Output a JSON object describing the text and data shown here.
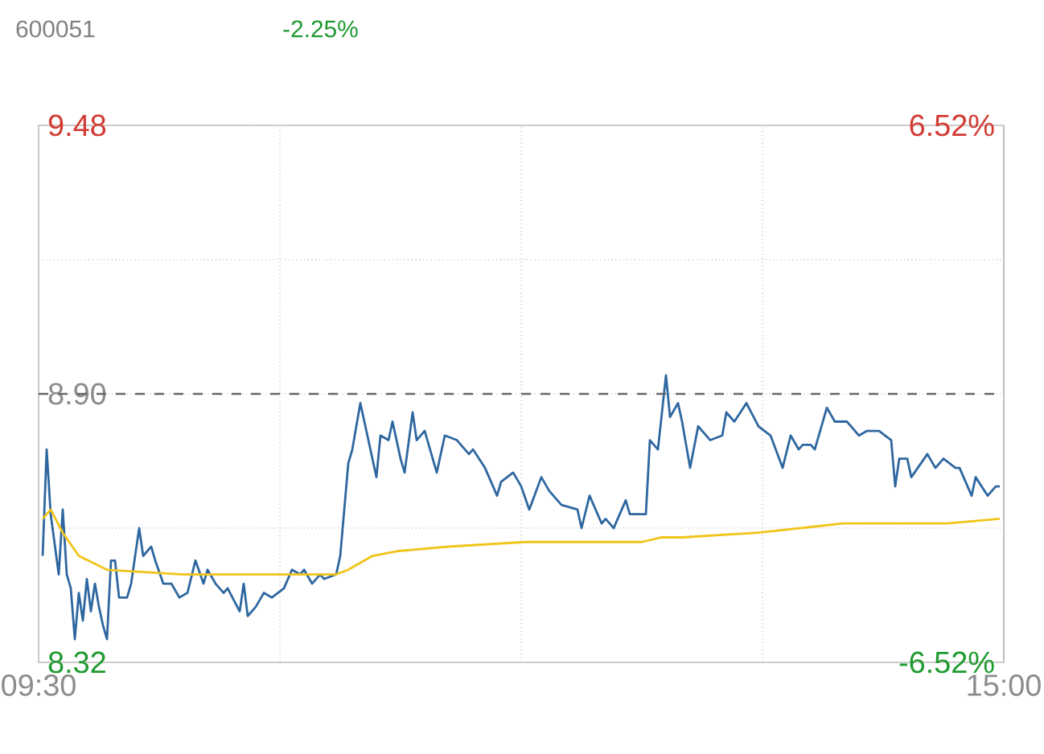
{
  "chart_data": {
    "type": "line",
    "title": "600051",
    "subtitle": "-2.25%",
    "categories": [
      "09:30",
      null,
      null,
      null,
      null,
      null,
      null,
      null,
      null,
      null,
      null,
      null,
      null,
      null,
      null,
      null,
      null,
      null,
      null,
      null,
      null,
      null,
      null,
      null,
      null,
      null,
      null,
      null,
      null,
      null,
      null,
      null,
      null,
      null,
      null,
      null,
      null,
      null,
      null,
      null,
      null,
      null,
      null,
      null,
      null,
      null,
      null,
      null,
      null,
      null,
      null,
      null,
      null,
      null,
      null,
      null,
      null,
      null,
      null,
      null,
      null,
      null,
      null,
      null,
      null,
      null,
      null,
      null,
      null,
      null,
      null,
      null,
      null,
      null,
      null,
      null,
      null,
      null,
      null,
      null,
      null,
      null,
      null,
      null,
      null,
      null,
      null,
      null,
      null,
      null,
      null,
      null,
      null,
      null,
      null,
      null,
      null,
      null,
      null,
      null,
      null,
      null,
      null,
      null,
      null,
      null,
      null,
      null,
      null,
      null,
      null,
      null,
      null,
      null,
      null,
      null,
      null,
      null,
      null,
      null,
      null,
      null,
      null,
      null,
      null,
      null,
      null,
      null,
      null,
      null,
      null,
      null,
      null,
      null,
      null,
      null,
      null,
      null,
      null,
      null,
      null,
      null,
      null,
      null,
      null,
      null,
      null,
      null,
      null,
      null,
      null,
      null,
      null,
      null,
      null,
      null,
      null,
      null,
      null,
      null,
      null,
      null,
      null,
      null,
      null,
      null,
      null,
      null,
      null,
      null,
      null,
      null,
      null,
      null,
      null,
      null,
      null,
      null,
      null,
      null,
      null,
      null,
      null,
      null,
      null,
      null,
      null,
      null,
      null,
      null,
      null,
      null,
      null,
      null,
      null,
      null,
      null,
      null,
      null,
      null,
      null,
      null,
      null,
      null,
      null,
      null,
      null,
      null,
      null,
      null,
      null,
      null,
      null,
      null,
      null,
      null,
      null,
      null,
      null,
      null,
      null,
      null,
      null,
      null,
      null,
      null,
      null,
      null,
      null,
      null,
      null,
      null,
      null,
      null,
      null,
      null,
      null,
      null,
      null,
      null,
      "15:00"
    ],
    "ylim": [
      8.32,
      9.48
    ],
    "yticks": [
      8.32,
      {
        "value": 8.61,
        "label": null
      },
      {
        "value": 8.9,
        "label": "8.90"
      },
      {
        "value": 9.19,
        "label": null
      },
      9.48
    ],
    "y2lim": [
      -6.52,
      6.52
    ],
    "y2ticks": [
      {
        "value": -6.52,
        "label": "-6.52%"
      },
      {
        "value": 6.52,
        "label": "6.52%"
      }
    ],
    "grid": true,
    "ref_lines": [
      {
        "axis": "y",
        "value": 8.9,
        "color": "#666666",
        "line_style": "dashed"
      }
    ],
    "series": [
      {
        "color": "#2e67a0",
        "values": [
          null,
          8.55,
          8.78,
          8.64,
          null,
          8.51,
          8.65,
          8.51,
          8.48,
          8.37,
          8.47,
          8.41,
          8.5,
          8.43,
          8.49,
          8.44,
          8.4,
          8.37,
          8.54,
          8.54,
          8.46,
          null,
          8.46,
          8.49,
          null,
          8.61,
          8.55,
          null,
          8.57,
          8.54,
          null,
          8.49,
          null,
          8.49,
          null,
          8.46,
          null,
          8.47,
          null,
          8.54,
          null,
          8.49,
          8.52,
          null,
          8.49,
          null,
          8.47,
          8.48,
          null,
          null,
          8.43,
          8.49,
          8.42,
          null,
          8.44,
          null,
          8.47,
          null,
          8.46,
          null,
          null,
          8.48,
          null,
          8.52,
          null,
          8.51,
          8.52,
          null,
          8.49,
          null,
          8.51,
          8.5,
          null,
          null,
          8.51,
          8.55,
          null,
          8.75,
          8.78,
          null,
          8.88,
          null,
          8.8,
          null,
          8.72,
          8.81,
          null,
          8.8,
          8.84,
          null,
          8.76,
          8.73,
          null,
          8.86,
          8.8,
          null,
          8.82,
          null,
          null,
          8.73,
          null,
          8.81,
          null,
          null,
          8.8,
          null,
          null,
          8.77,
          8.78,
          null,
          null,
          8.74,
          null,
          null,
          8.68,
          8.71,
          null,
          null,
          8.73,
          null,
          8.7,
          null,
          8.65,
          null,
          null,
          8.72,
          null,
          8.69,
          null,
          null,
          8.66,
          null,
          null,
          null,
          8.65,
          8.61,
          null,
          8.68,
          null,
          null,
          8.62,
          8.63,
          null,
          8.61,
          null,
          null,
          8.67,
          8.64,
          null,
          null,
          null,
          8.64,
          8.8,
          null,
          8.78,
          null,
          8.94,
          8.85,
          null,
          8.88,
          8.84,
          null,
          8.74,
          null,
          8.83,
          null,
          null,
          8.8,
          null,
          null,
          8.81,
          8.86,
          null,
          8.84,
          null,
          null,
          8.88,
          null,
          null,
          8.83,
          null,
          null,
          8.81,
          null,
          null,
          8.74,
          null,
          8.81,
          null,
          8.78,
          8.79,
          null,
          8.79,
          8.78,
          null,
          null,
          8.87,
          null,
          8.84,
          null,
          null,
          8.84,
          null,
          null,
          8.81,
          null,
          8.82,
          null,
          null,
          8.82,
          null,
          null,
          8.8,
          8.7,
          8.76,
          null,
          8.76,
          8.72,
          null,
          null,
          null,
          8.77,
          null,
          8.74,
          null,
          8.76,
          null,
          null,
          8.74,
          8.74,
          null,
          null,
          8.68,
          8.72,
          null,
          null,
          8.68,
          null,
          8.7,
          8.7,
          null
        ]
      },
      {
        "color": "#f0c419",
        "values": [
          null,
          8.63,
          null,
          8.65,
          null,
          null,
          8.6,
          null,
          null,
          null,
          8.55,
          null,
          null,
          null,
          null,
          null,
          null,
          8.52,
          null,
          null,
          null,
          null,
          null,
          null,
          null,
          null,
          null,
          null,
          null,
          null,
          null,
          null,
          null,
          null,
          null,
          null,
          8.51,
          null,
          null,
          null,
          null,
          null,
          null,
          null,
          null,
          null,
          null,
          null,
          null,
          null,
          null,
          null,
          null,
          null,
          null,
          null,
          null,
          null,
          null,
          8.51,
          null,
          null,
          null,
          null,
          null,
          null,
          null,
          null,
          null,
          null,
          null,
          null,
          null,
          null,
          8.51,
          null,
          null,
          8.52,
          null,
          null,
          null,
          null,
          null,
          8.55,
          null,
          null,
          null,
          null,
          null,
          8.56,
          null,
          null,
          null,
          null,
          null,
          null,
          null,
          null,
          null,
          null,
          null,
          null,
          8.57,
          null,
          null,
          null,
          null,
          null,
          null,
          null,
          null,
          null,
          null,
          null,
          null,
          null,
          null,
          null,
          null,
          null,
          null,
          8.58,
          null,
          null,
          null,
          null,
          null,
          null,
          null,
          null,
          null,
          null,
          null,
          null,
          null,
          null,
          null,
          null,
          null,
          null,
          null,
          null,
          null,
          null,
          null,
          null,
          null,
          null,
          null,
          null,
          8.58,
          null,
          null,
          null,
          null,
          8.59,
          null,
          null,
          null,
          null,
          8.59,
          null,
          null,
          null,
          null,
          null,
          null,
          null,
          null,
          null,
          null,
          null,
          null,
          null,
          null,
          null,
          null,
          null,
          null,
          8.6,
          null,
          null,
          null,
          null,
          null,
          null,
          null,
          null,
          null,
          null,
          null,
          null,
          null,
          null,
          null,
          null,
          null,
          null,
          null,
          null,
          8.62,
          null,
          null,
          null,
          null,
          null,
          null,
          null,
          null,
          null,
          null,
          null,
          null,
          null,
          null,
          null,
          null,
          null,
          null,
          null,
          null,
          null,
          null,
          null,
          null,
          null,
          8.62,
          null,
          null,
          null,
          null,
          null,
          null,
          null,
          null,
          null,
          null,
          null,
          null,
          8.63,
          null
        ]
      }
    ]
  }
}
